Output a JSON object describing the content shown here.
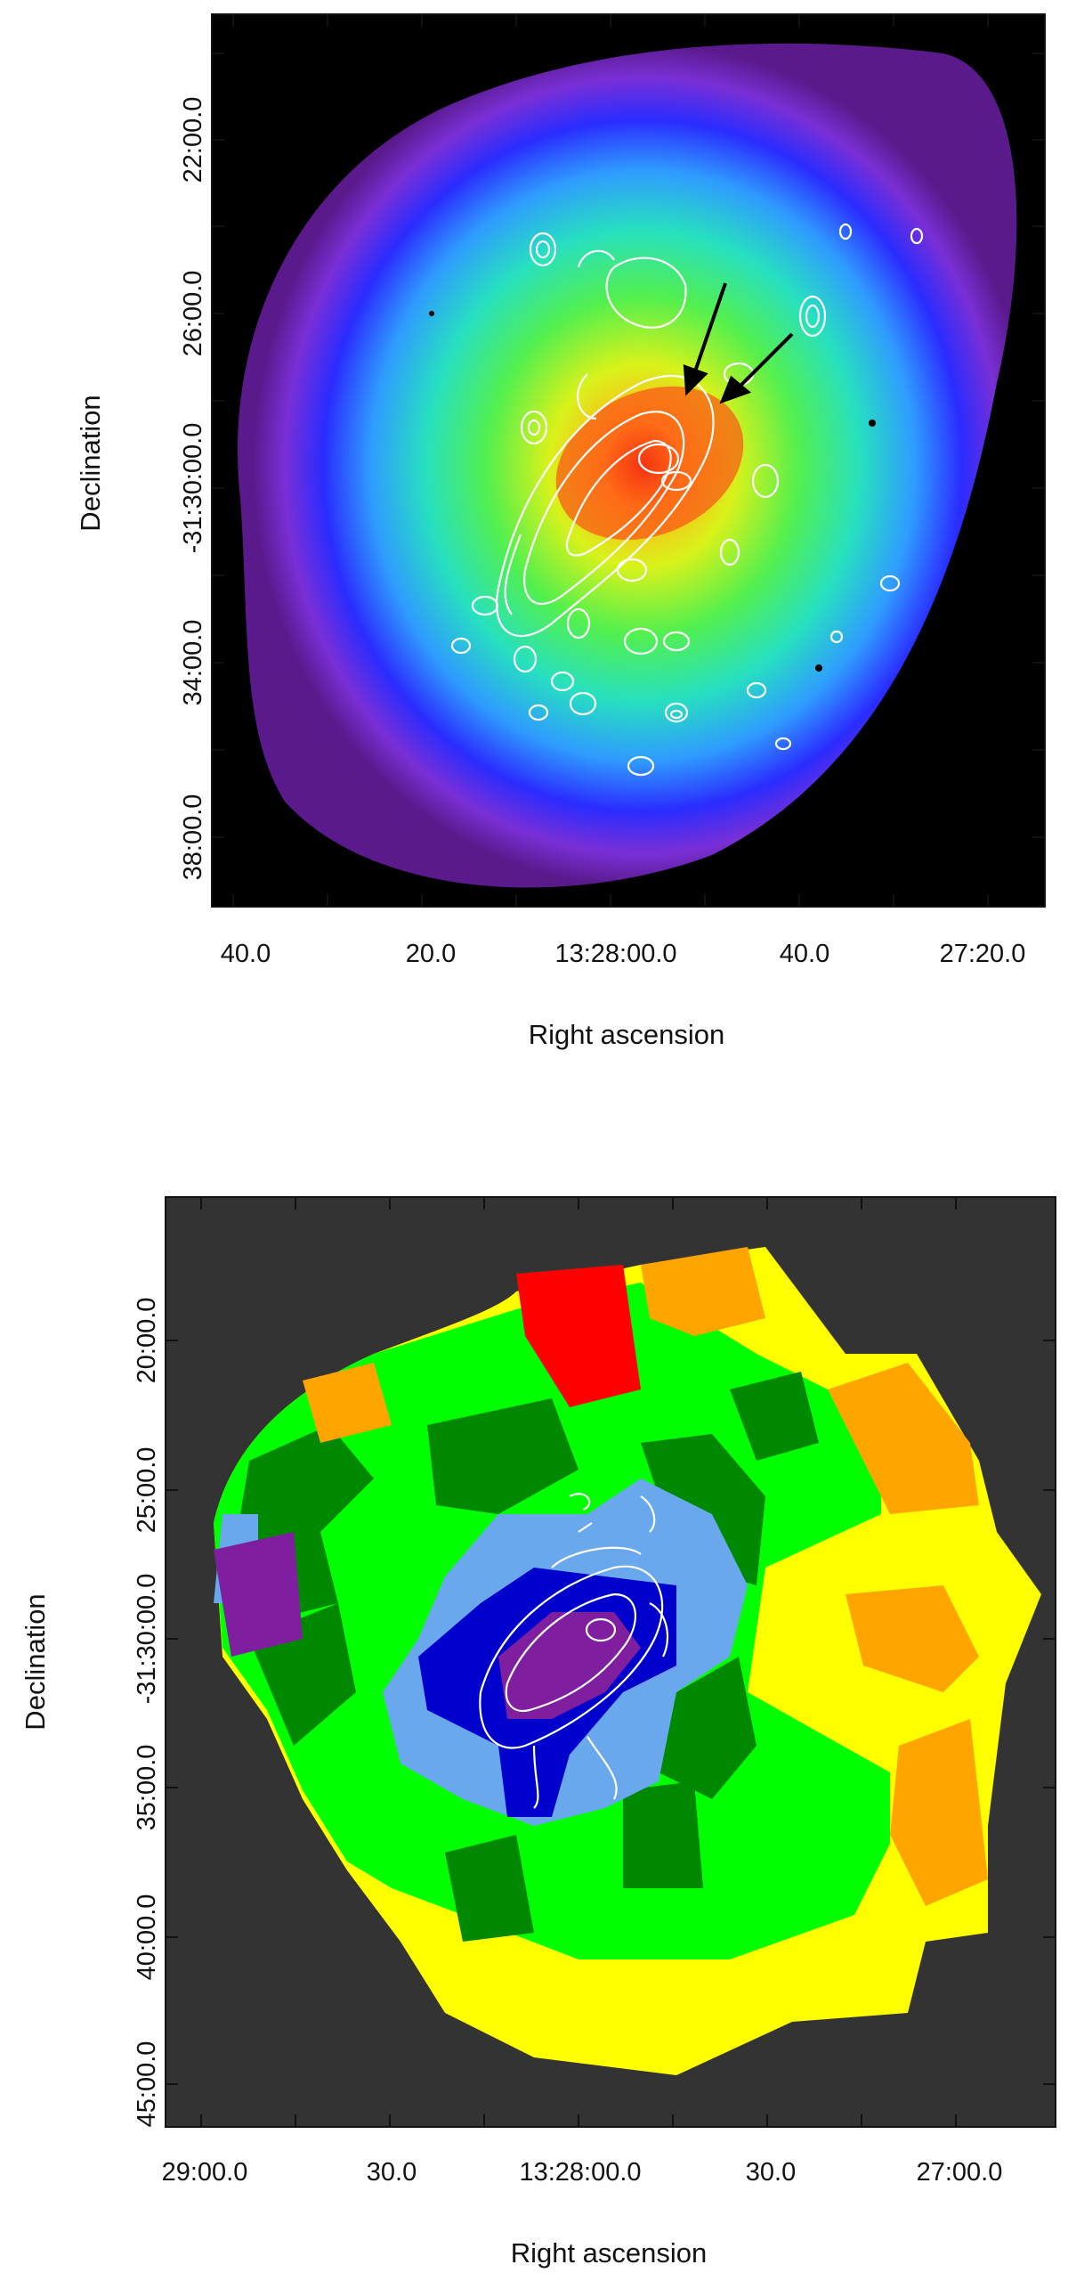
{
  "panels": [
    {
      "id": "top",
      "xlabel": "Right ascension",
      "ylabel": "Declination",
      "x_ticks": [
        "40.0",
        "20.0",
        "13:28:00.0",
        "40.0",
        "27:20.0"
      ],
      "y_ticks": [
        "22:00.0",
        "26:00.0",
        "-31:30:00.0",
        "34:00.0",
        "38:00.0"
      ],
      "colormap": [
        "#000000",
        "#5a1a8c",
        "#7a2fd6",
        "#2a2cff",
        "#2f9bff",
        "#27e0c0",
        "#53f04e",
        "#d9f21a",
        "#ffb319",
        "#e82a10"
      ],
      "annotation": "two black arrows pointing toward cluster core"
    },
    {
      "id": "bottom",
      "xlabel": "Right ascension",
      "ylabel": "Declination",
      "x_ticks": [
        "29:00.0",
        "30.0",
        "13:28:00.0",
        "30.0",
        "27:00.0"
      ],
      "y_ticks": [
        "20:00.0",
        "25:00.0",
        "-31:30:00.0",
        "35:00.0",
        "40:00.0",
        "45:00.0"
      ],
      "background": "#333333",
      "region_colors": [
        "#ff0000",
        "#ffa500",
        "#ffff00",
        "#00ff00",
        "#008800",
        "#6aa8ee",
        "#0000cc",
        "#7f1fa0"
      ]
    }
  ]
}
